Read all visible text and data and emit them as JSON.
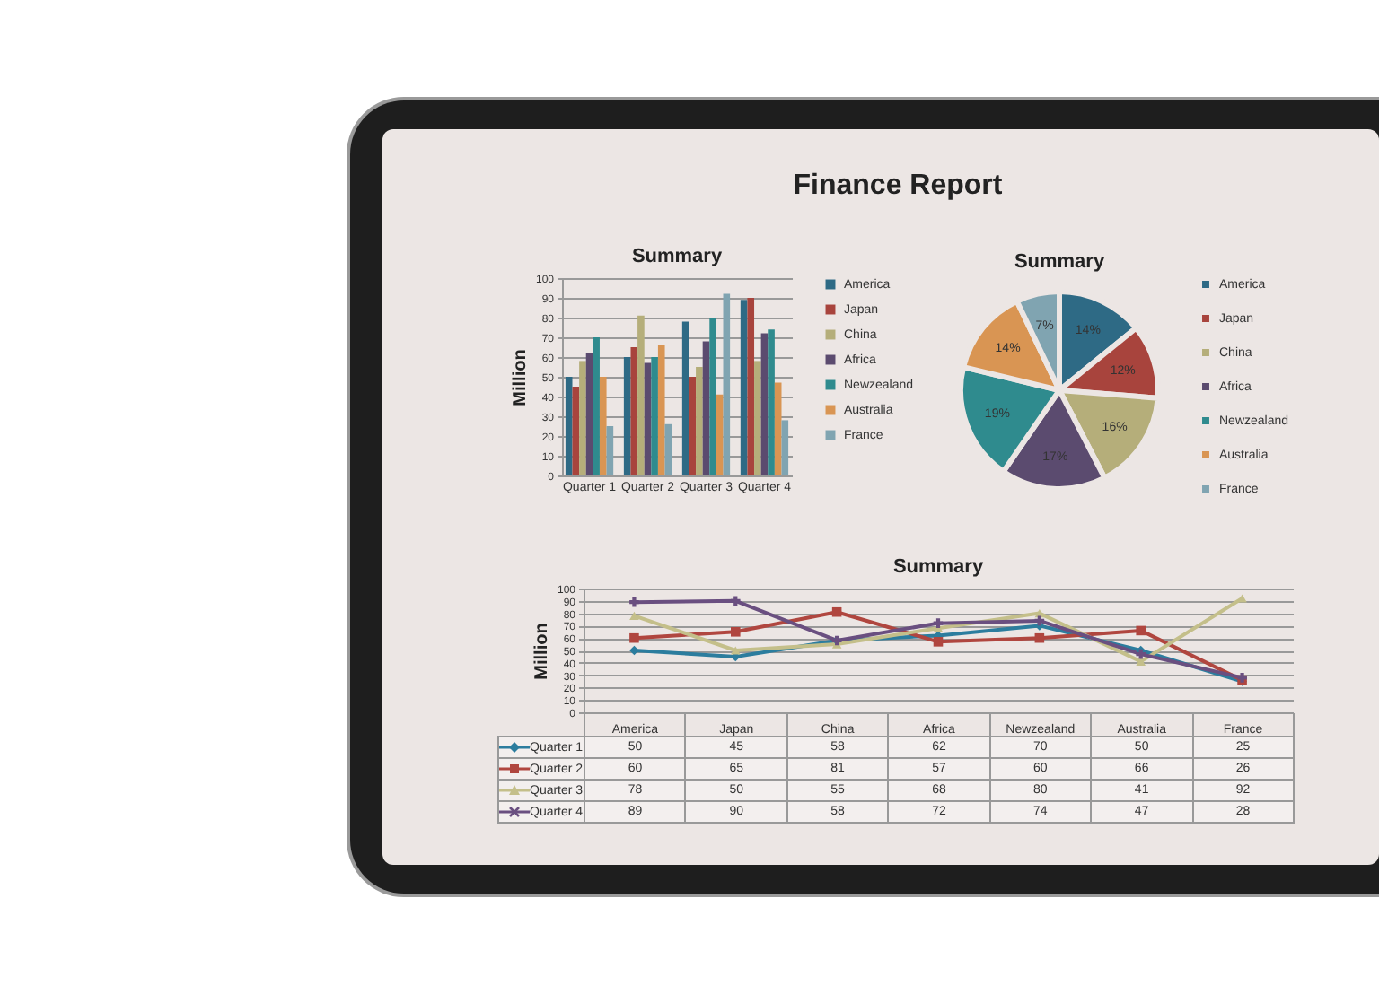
{
  "chart_data": [
    {
      "type": "other",
      "title": "Finance Report"
    },
    {
      "type": "bar",
      "title": "Summary",
      "ylabel": "Million",
      "categories": [
        "Quarter 1",
        "Quarter 2",
        "Quarter 3",
        "Quarter 4"
      ],
      "series": [
        {
          "name": "America",
          "color": "#2e6a85",
          "values": [
            50,
            60,
            78,
            89
          ]
        },
        {
          "name": "Japan",
          "color": "#a8443d",
          "values": [
            45,
            65,
            50,
            90
          ]
        },
        {
          "name": "China",
          "color": "#b5ae7a",
          "values": [
            58,
            81,
            55,
            58
          ]
        },
        {
          "name": "Africa",
          "color": "#5b4b6f",
          "values": [
            62,
            57,
            68,
            72
          ]
        },
        {
          "name": "Newzealand",
          "color": "#2f8b8e",
          "values": [
            70,
            60,
            80,
            74
          ]
        },
        {
          "name": "Australia",
          "color": "#d99553",
          "values": [
            50,
            66,
            41,
            47
          ]
        },
        {
          "name": "France",
          "color": "#80a4b1",
          "values": [
            25,
            26,
            92,
            28
          ]
        }
      ],
      "ylim": [
        0,
        100
      ],
      "yticks": [
        0,
        10,
        20,
        30,
        40,
        50,
        60,
        70,
        80,
        90,
        100
      ],
      "grid": "y",
      "legend": "right"
    },
    {
      "type": "pie",
      "title": "Summary",
      "categories": [
        "America",
        "Japan",
        "China",
        "Africa",
        "Newzealand",
        "Australia",
        "France"
      ],
      "values": [
        14,
        12,
        16,
        17,
        19,
        14,
        7
      ],
      "value_labels": [
        "14%",
        "12%",
        "16%",
        "17%",
        "19%",
        "14%",
        "7%"
      ],
      "colors": [
        "#2e6a85",
        "#a8443d",
        "#b5ae7a",
        "#5b4b6f",
        "#2f8b8e",
        "#d99553",
        "#80a4b1"
      ],
      "legend": "right"
    },
    {
      "type": "line",
      "title": "Summary",
      "ylabel": "Million",
      "categories": [
        "America",
        "Japan",
        "China",
        "Africa",
        "Newzealand",
        "Australia",
        "France"
      ],
      "series": [
        {
          "name": "Quarter 1",
          "color": "#2c7d9e",
          "marker": "diamond",
          "values": [
            50,
            45,
            58,
            62,
            70,
            50,
            25
          ]
        },
        {
          "name": "Quarter 2",
          "color": "#b0463f",
          "marker": "square",
          "values": [
            60,
            65,
            81,
            57,
            60,
            66,
            26
          ]
        },
        {
          "name": "Quarter 3",
          "color": "#c4bf8a",
          "marker": "triangle",
          "values": [
            78,
            50,
            55,
            68,
            80,
            41,
            92
          ]
        },
        {
          "name": "Quarter 4",
          "color": "#6a4f80",
          "marker": "cross",
          "values": [
            89,
            90,
            58,
            72,
            74,
            47,
            28
          ]
        }
      ],
      "ylim": [
        0,
        100
      ],
      "yticks": [
        0,
        10,
        20,
        30,
        40,
        50,
        60,
        70,
        80,
        90,
        100
      ],
      "grid": "y",
      "data_labels": true,
      "legend": "bottom left"
    }
  ]
}
